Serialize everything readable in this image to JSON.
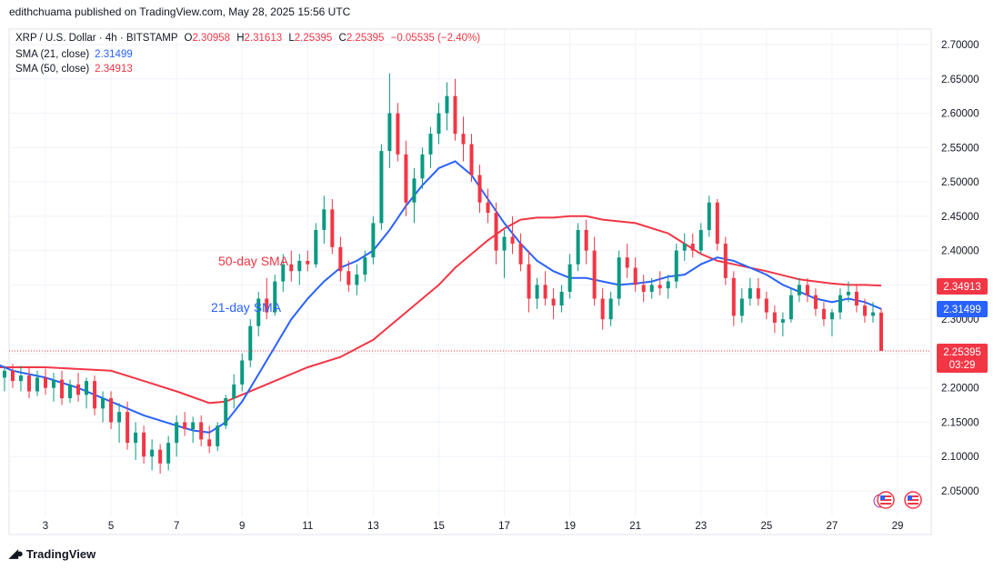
{
  "publisher": "edithchuama published on TradingView.com, May 28, 2025 15:56 UTC",
  "legend": {
    "symbol": "XRP / U.S. Dollar · 4h · BITSTAMP",
    "o_key": "O",
    "o_val": "2.30958",
    "h_key": "H",
    "h_val": "2.31613",
    "l_key": "L",
    "l_val": "2.25395",
    "c_key": "C",
    "c_val": "2.25395",
    "change": "−0.05535 (−2.40%)",
    "sma21_label": "SMA (21, close)",
    "sma21_value": "2.31499",
    "sma50_label": "SMA (50, close)",
    "sma50_value": "2.34913"
  },
  "annotations": {
    "sma50": "50-day SMA",
    "sma21": "21-day SMA"
  },
  "price_badges": {
    "sma50": "2.34913",
    "sma21": "2.31499",
    "last": "2.25395",
    "countdown": "03:29"
  },
  "footer": "TradingView",
  "colors": {
    "up": "#089981",
    "down": "#f23645",
    "sma21": "#2962ff",
    "sma50": "#f23645"
  },
  "icons": [
    "tradingview-logo-icon",
    "us-flag-event-icon"
  ],
  "chart_data": {
    "type": "candlestick",
    "ylim": [
      2.02,
      2.72
    ],
    "y_ticks": [
      "2.70000",
      "2.65000",
      "2.60000",
      "2.55000",
      "2.50000",
      "2.45000",
      "2.40000",
      "2.35000",
      "2.30000",
      "2.25000",
      "2.20000",
      "2.15000",
      "2.10000",
      "2.05000"
    ],
    "x_ticks": [
      "3",
      "5",
      "7",
      "9",
      "11",
      "13",
      "15",
      "17",
      "19",
      "21",
      "23",
      "25",
      "27",
      "29"
    ],
    "x_range": [
      1.0,
      29.6
    ],
    "candles": [
      {
        "d": 1.0,
        "o": 2.225,
        "h": 2.24,
        "l": 2.21,
        "c": 2.215
      },
      {
        "d": 1.25,
        "o": 2.215,
        "h": 2.235,
        "l": 2.195,
        "c": 2.23
      },
      {
        "d": 1.5,
        "o": 2.23,
        "h": 2.245,
        "l": 2.21,
        "c": 2.215
      },
      {
        "d": 1.75,
        "o": 2.215,
        "h": 2.232,
        "l": 2.195,
        "c": 2.225
      },
      {
        "d": 2.0,
        "o": 2.225,
        "h": 2.235,
        "l": 2.2,
        "c": 2.21
      },
      {
        "d": 2.25,
        "o": 2.21,
        "h": 2.232,
        "l": 2.195,
        "c": 2.218
      },
      {
        "d": 2.5,
        "o": 2.218,
        "h": 2.23,
        "l": 2.185,
        "c": 2.195
      },
      {
        "d": 2.75,
        "o": 2.195,
        "h": 2.225,
        "l": 2.188,
        "c": 2.215
      },
      {
        "d": 3.0,
        "o": 2.215,
        "h": 2.228,
        "l": 2.19,
        "c": 2.2
      },
      {
        "d": 3.25,
        "o": 2.2,
        "h": 2.222,
        "l": 2.18,
        "c": 2.212
      },
      {
        "d": 3.5,
        "o": 2.212,
        "h": 2.225,
        "l": 2.175,
        "c": 2.185
      },
      {
        "d": 3.75,
        "o": 2.185,
        "h": 2.212,
        "l": 2.178,
        "c": 2.205
      },
      {
        "d": 4.0,
        "o": 2.205,
        "h": 2.222,
        "l": 2.18,
        "c": 2.19
      },
      {
        "d": 4.25,
        "o": 2.19,
        "h": 2.215,
        "l": 2.17,
        "c": 2.21
      },
      {
        "d": 4.5,
        "o": 2.21,
        "h": 2.218,
        "l": 2.16,
        "c": 2.17
      },
      {
        "d": 4.75,
        "o": 2.17,
        "h": 2.195,
        "l": 2.15,
        "c": 2.185
      },
      {
        "d": 5.0,
        "o": 2.185,
        "h": 2.195,
        "l": 2.14,
        "c": 2.15
      },
      {
        "d": 5.25,
        "o": 2.15,
        "h": 2.178,
        "l": 2.12,
        "c": 2.165
      },
      {
        "d": 5.5,
        "o": 2.165,
        "h": 2.18,
        "l": 2.11,
        "c": 2.12
      },
      {
        "d": 5.75,
        "o": 2.12,
        "h": 2.15,
        "l": 2.095,
        "c": 2.135
      },
      {
        "d": 6.0,
        "o": 2.135,
        "h": 2.145,
        "l": 2.09,
        "c": 2.1
      },
      {
        "d": 6.25,
        "o": 2.1,
        "h": 2.125,
        "l": 2.08,
        "c": 2.11
      },
      {
        "d": 6.5,
        "o": 2.11,
        "h": 2.118,
        "l": 2.075,
        "c": 2.09
      },
      {
        "d": 6.75,
        "o": 2.09,
        "h": 2.13,
        "l": 2.08,
        "c": 2.12
      },
      {
        "d": 7.0,
        "o": 2.12,
        "h": 2.16,
        "l": 2.1,
        "c": 2.15
      },
      {
        "d": 7.25,
        "o": 2.15,
        "h": 2.165,
        "l": 2.13,
        "c": 2.14
      },
      {
        "d": 7.5,
        "o": 2.14,
        "h": 2.158,
        "l": 2.12,
        "c": 2.15
      },
      {
        "d": 7.75,
        "o": 2.15,
        "h": 2.16,
        "l": 2.115,
        "c": 2.125
      },
      {
        "d": 8.0,
        "o": 2.125,
        "h": 2.145,
        "l": 2.105,
        "c": 2.115
      },
      {
        "d": 8.25,
        "o": 2.115,
        "h": 2.15,
        "l": 2.108,
        "c": 2.145
      },
      {
        "d": 8.5,
        "o": 2.145,
        "h": 2.19,
        "l": 2.14,
        "c": 2.185
      },
      {
        "d": 8.75,
        "o": 2.185,
        "h": 2.22,
        "l": 2.17,
        "c": 2.205
      },
      {
        "d": 9.0,
        "o": 2.205,
        "h": 2.25,
        "l": 2.195,
        "c": 2.24
      },
      {
        "d": 9.25,
        "o": 2.24,
        "h": 2.3,
        "l": 2.23,
        "c": 2.29
      },
      {
        "d": 9.5,
        "o": 2.29,
        "h": 2.34,
        "l": 2.275,
        "c": 2.33
      },
      {
        "d": 9.75,
        "o": 2.33,
        "h": 2.36,
        "l": 2.3,
        "c": 2.31
      },
      {
        "d": 10.0,
        "o": 2.31,
        "h": 2.365,
        "l": 2.305,
        "c": 2.355
      },
      {
        "d": 10.25,
        "o": 2.355,
        "h": 2.395,
        "l": 2.34,
        "c": 2.38
      },
      {
        "d": 10.5,
        "o": 2.38,
        "h": 2.4,
        "l": 2.355,
        "c": 2.37
      },
      {
        "d": 10.75,
        "o": 2.37,
        "h": 2.395,
        "l": 2.35,
        "c": 2.385
      },
      {
        "d": 11.0,
        "o": 2.385,
        "h": 2.4,
        "l": 2.37,
        "c": 2.38
      },
      {
        "d": 11.25,
        "o": 2.38,
        "h": 2.44,
        "l": 2.375,
        "c": 2.43
      },
      {
        "d": 11.5,
        "o": 2.43,
        "h": 2.48,
        "l": 2.41,
        "c": 2.46
      },
      {
        "d": 11.75,
        "o": 2.46,
        "h": 2.475,
        "l": 2.395,
        "c": 2.405
      },
      {
        "d": 12.0,
        "o": 2.405,
        "h": 2.42,
        "l": 2.355,
        "c": 2.37
      },
      {
        "d": 12.25,
        "o": 2.37,
        "h": 2.385,
        "l": 2.34,
        "c": 2.35
      },
      {
        "d": 12.5,
        "o": 2.35,
        "h": 2.38,
        "l": 2.335,
        "c": 2.365
      },
      {
        "d": 12.75,
        "o": 2.365,
        "h": 2.4,
        "l": 2.355,
        "c": 2.39
      },
      {
        "d": 13.0,
        "o": 2.39,
        "h": 2.45,
        "l": 2.38,
        "c": 2.44
      },
      {
        "d": 13.25,
        "o": 2.44,
        "h": 2.555,
        "l": 2.43,
        "c": 2.545
      },
      {
        "d": 13.5,
        "o": 2.545,
        "h": 2.658,
        "l": 2.52,
        "c": 2.6
      },
      {
        "d": 13.75,
        "o": 2.6,
        "h": 2.615,
        "l": 2.53,
        "c": 2.54
      },
      {
        "d": 14.0,
        "o": 2.54,
        "h": 2.56,
        "l": 2.45,
        "c": 2.47
      },
      {
        "d": 14.25,
        "o": 2.47,
        "h": 2.52,
        "l": 2.44,
        "c": 2.505
      },
      {
        "d": 14.5,
        "o": 2.505,
        "h": 2.55,
        "l": 2.49,
        "c": 2.54
      },
      {
        "d": 14.75,
        "o": 2.54,
        "h": 2.58,
        "l": 2.52,
        "c": 2.57
      },
      {
        "d": 15.0,
        "o": 2.57,
        "h": 2.615,
        "l": 2.555,
        "c": 2.6
      },
      {
        "d": 15.25,
        "o": 2.6,
        "h": 2.645,
        "l": 2.575,
        "c": 2.625
      },
      {
        "d": 15.5,
        "o": 2.625,
        "h": 2.65,
        "l": 2.56,
        "c": 2.57
      },
      {
        "d": 15.75,
        "o": 2.57,
        "h": 2.595,
        "l": 2.53,
        "c": 2.555
      },
      {
        "d": 16.0,
        "o": 2.555,
        "h": 2.57,
        "l": 2.5,
        "c": 2.51
      },
      {
        "d": 16.25,
        "o": 2.51,
        "h": 2.525,
        "l": 2.455,
        "c": 2.47
      },
      {
        "d": 16.5,
        "o": 2.47,
        "h": 2.49,
        "l": 2.44,
        "c": 2.455
      },
      {
        "d": 16.75,
        "o": 2.455,
        "h": 2.47,
        "l": 2.38,
        "c": 2.4
      },
      {
        "d": 17.0,
        "o": 2.4,
        "h": 2.43,
        "l": 2.36,
        "c": 2.42
      },
      {
        "d": 17.25,
        "o": 2.42,
        "h": 2.45,
        "l": 2.395,
        "c": 2.41
      },
      {
        "d": 17.5,
        "o": 2.41,
        "h": 2.425,
        "l": 2.37,
        "c": 2.38
      },
      {
        "d": 17.75,
        "o": 2.38,
        "h": 2.4,
        "l": 2.31,
        "c": 2.33
      },
      {
        "d": 18.0,
        "o": 2.33,
        "h": 2.36,
        "l": 2.315,
        "c": 2.35
      },
      {
        "d": 18.25,
        "o": 2.35,
        "h": 2.37,
        "l": 2.32,
        "c": 2.33
      },
      {
        "d": 18.5,
        "o": 2.33,
        "h": 2.345,
        "l": 2.3,
        "c": 2.32
      },
      {
        "d": 18.75,
        "o": 2.32,
        "h": 2.35,
        "l": 2.31,
        "c": 2.34
      },
      {
        "d": 19.0,
        "o": 2.34,
        "h": 2.395,
        "l": 2.33,
        "c": 2.38
      },
      {
        "d": 19.25,
        "o": 2.38,
        "h": 2.44,
        "l": 2.37,
        "c": 2.43
      },
      {
        "d": 19.5,
        "o": 2.43,
        "h": 2.445,
        "l": 2.38,
        "c": 2.4
      },
      {
        "d": 19.75,
        "o": 2.4,
        "h": 2.42,
        "l": 2.32,
        "c": 2.33
      },
      {
        "d": 20.0,
        "o": 2.33,
        "h": 2.345,
        "l": 2.285,
        "c": 2.3
      },
      {
        "d": 20.25,
        "o": 2.3,
        "h": 2.34,
        "l": 2.29,
        "c": 2.33
      },
      {
        "d": 20.5,
        "o": 2.33,
        "h": 2.4,
        "l": 2.32,
        "c": 2.39
      },
      {
        "d": 20.75,
        "o": 2.39,
        "h": 2.41,
        "l": 2.36,
        "c": 2.375
      },
      {
        "d": 21.0,
        "o": 2.375,
        "h": 2.39,
        "l": 2.34,
        "c": 2.35
      },
      {
        "d": 21.25,
        "o": 2.35,
        "h": 2.365,
        "l": 2.325,
        "c": 2.34
      },
      {
        "d": 21.5,
        "o": 2.34,
        "h": 2.36,
        "l": 2.33,
        "c": 2.35
      },
      {
        "d": 21.75,
        "o": 2.35,
        "h": 2.37,
        "l": 2.335,
        "c": 2.345
      },
      {
        "d": 22.0,
        "o": 2.345,
        "h": 2.365,
        "l": 2.33,
        "c": 2.355
      },
      {
        "d": 22.25,
        "o": 2.355,
        "h": 2.41,
        "l": 2.345,
        "c": 2.4
      },
      {
        "d": 22.5,
        "o": 2.4,
        "h": 2.425,
        "l": 2.385,
        "c": 2.41
      },
      {
        "d": 22.75,
        "o": 2.41,
        "h": 2.425,
        "l": 2.39,
        "c": 2.4
      },
      {
        "d": 23.0,
        "o": 2.4,
        "h": 2.44,
        "l": 2.395,
        "c": 2.43
      },
      {
        "d": 23.25,
        "o": 2.43,
        "h": 2.48,
        "l": 2.42,
        "c": 2.47
      },
      {
        "d": 23.5,
        "o": 2.47,
        "h": 2.475,
        "l": 2.4,
        "c": 2.41
      },
      {
        "d": 23.75,
        "o": 2.41,
        "h": 2.42,
        "l": 2.35,
        "c": 2.36
      },
      {
        "d": 24.0,
        "o": 2.36,
        "h": 2.37,
        "l": 2.29,
        "c": 2.305
      },
      {
        "d": 24.25,
        "o": 2.305,
        "h": 2.345,
        "l": 2.295,
        "c": 2.33
      },
      {
        "d": 24.5,
        "o": 2.33,
        "h": 2.36,
        "l": 2.32,
        "c": 2.345
      },
      {
        "d": 24.75,
        "o": 2.345,
        "h": 2.36,
        "l": 2.32,
        "c": 2.33
      },
      {
        "d": 25.0,
        "o": 2.33,
        "h": 2.34,
        "l": 2.3,
        "c": 2.31
      },
      {
        "d": 25.25,
        "o": 2.31,
        "h": 2.32,
        "l": 2.28,
        "c": 2.295
      },
      {
        "d": 25.5,
        "o": 2.295,
        "h": 2.31,
        "l": 2.275,
        "c": 2.3
      },
      {
        "d": 25.75,
        "o": 2.3,
        "h": 2.345,
        "l": 2.295,
        "c": 2.335
      },
      {
        "d": 26.0,
        "o": 2.335,
        "h": 2.36,
        "l": 2.325,
        "c": 2.35
      },
      {
        "d": 26.25,
        "o": 2.35,
        "h": 2.36,
        "l": 2.325,
        "c": 2.335
      },
      {
        "d": 26.5,
        "o": 2.335,
        "h": 2.345,
        "l": 2.305,
        "c": 2.315
      },
      {
        "d": 26.75,
        "o": 2.315,
        "h": 2.325,
        "l": 2.29,
        "c": 2.3
      },
      {
        "d": 27.0,
        "o": 2.3,
        "h": 2.315,
        "l": 2.275,
        "c": 2.31
      },
      {
        "d": 27.25,
        "o": 2.31,
        "h": 2.345,
        "l": 2.3,
        "c": 2.335
      },
      {
        "d": 27.5,
        "o": 2.335,
        "h": 2.355,
        "l": 2.325,
        "c": 2.34
      },
      {
        "d": 27.75,
        "o": 2.34,
        "h": 2.35,
        "l": 2.31,
        "c": 2.32
      },
      {
        "d": 28.0,
        "o": 2.32,
        "h": 2.33,
        "l": 2.295,
        "c": 2.305
      },
      {
        "d": 28.25,
        "o": 2.305,
        "h": 2.325,
        "l": 2.295,
        "c": 2.31
      },
      {
        "d": 28.5,
        "o": 2.30958,
        "h": 2.31613,
        "l": 2.25395,
        "c": 2.25395
      }
    ],
    "sma21": [
      [
        1.0,
        2.245
      ],
      [
        2.0,
        2.225
      ],
      [
        3.0,
        2.215
      ],
      [
        4.0,
        2.2
      ],
      [
        5.0,
        2.18
      ],
      [
        6.0,
        2.16
      ],
      [
        7.0,
        2.145
      ],
      [
        7.5,
        2.138
      ],
      [
        8.0,
        2.135
      ],
      [
        8.5,
        2.15
      ],
      [
        9.0,
        2.18
      ],
      [
        9.5,
        2.22
      ],
      [
        10.0,
        2.26
      ],
      [
        10.5,
        2.3
      ],
      [
        11.0,
        2.33
      ],
      [
        11.5,
        2.355
      ],
      [
        12.0,
        2.375
      ],
      [
        12.5,
        2.385
      ],
      [
        13.0,
        2.4
      ],
      [
        13.5,
        2.43
      ],
      [
        14.0,
        2.465
      ],
      [
        14.5,
        2.495
      ],
      [
        15.0,
        2.52
      ],
      [
        15.5,
        2.53
      ],
      [
        16.0,
        2.51
      ],
      [
        16.5,
        2.475
      ],
      [
        17.0,
        2.44
      ],
      [
        17.5,
        2.41
      ],
      [
        18.0,
        2.385
      ],
      [
        18.5,
        2.37
      ],
      [
        19.0,
        2.36
      ],
      [
        19.5,
        2.36
      ],
      [
        20.0,
        2.355
      ],
      [
        20.5,
        2.35
      ],
      [
        21.0,
        2.352
      ],
      [
        21.5,
        2.355
      ],
      [
        22.0,
        2.362
      ],
      [
        22.5,
        2.365
      ],
      [
        23.0,
        2.38
      ],
      [
        23.5,
        2.39
      ],
      [
        24.0,
        2.385
      ],
      [
        24.5,
        2.375
      ],
      [
        25.0,
        2.365
      ],
      [
        25.5,
        2.35
      ],
      [
        26.0,
        2.34
      ],
      [
        26.5,
        2.33
      ],
      [
        27.0,
        2.325
      ],
      [
        27.5,
        2.33
      ],
      [
        28.0,
        2.325
      ],
      [
        28.5,
        2.315
      ]
    ],
    "sma50": [
      [
        1.0,
        2.23
      ],
      [
        3.0,
        2.23
      ],
      [
        5.0,
        2.225
      ],
      [
        6.0,
        2.21
      ],
      [
        7.0,
        2.195
      ],
      [
        8.0,
        2.178
      ],
      [
        8.5,
        2.18
      ],
      [
        9.0,
        2.19
      ],
      [
        10.0,
        2.21
      ],
      [
        11.0,
        2.23
      ],
      [
        12.0,
        2.245
      ],
      [
        13.0,
        2.27
      ],
      [
        14.0,
        2.31
      ],
      [
        15.0,
        2.35
      ],
      [
        15.5,
        2.375
      ],
      [
        16.0,
        2.395
      ],
      [
        16.5,
        2.415
      ],
      [
        17.0,
        2.432
      ],
      [
        17.5,
        2.445
      ],
      [
        18.0,
        2.448
      ],
      [
        18.5,
        2.448
      ],
      [
        19.0,
        2.45
      ],
      [
        19.5,
        2.45
      ],
      [
        20.0,
        2.445
      ],
      [
        21.0,
        2.44
      ],
      [
        22.0,
        2.425
      ],
      [
        22.5,
        2.41
      ],
      [
        23.0,
        2.395
      ],
      [
        23.5,
        2.385
      ],
      [
        24.0,
        2.38
      ],
      [
        25.0,
        2.37
      ],
      [
        26.0,
        2.358
      ],
      [
        27.0,
        2.352
      ],
      [
        27.5,
        2.35
      ],
      [
        28.0,
        2.35
      ],
      [
        28.5,
        2.349
      ]
    ]
  }
}
